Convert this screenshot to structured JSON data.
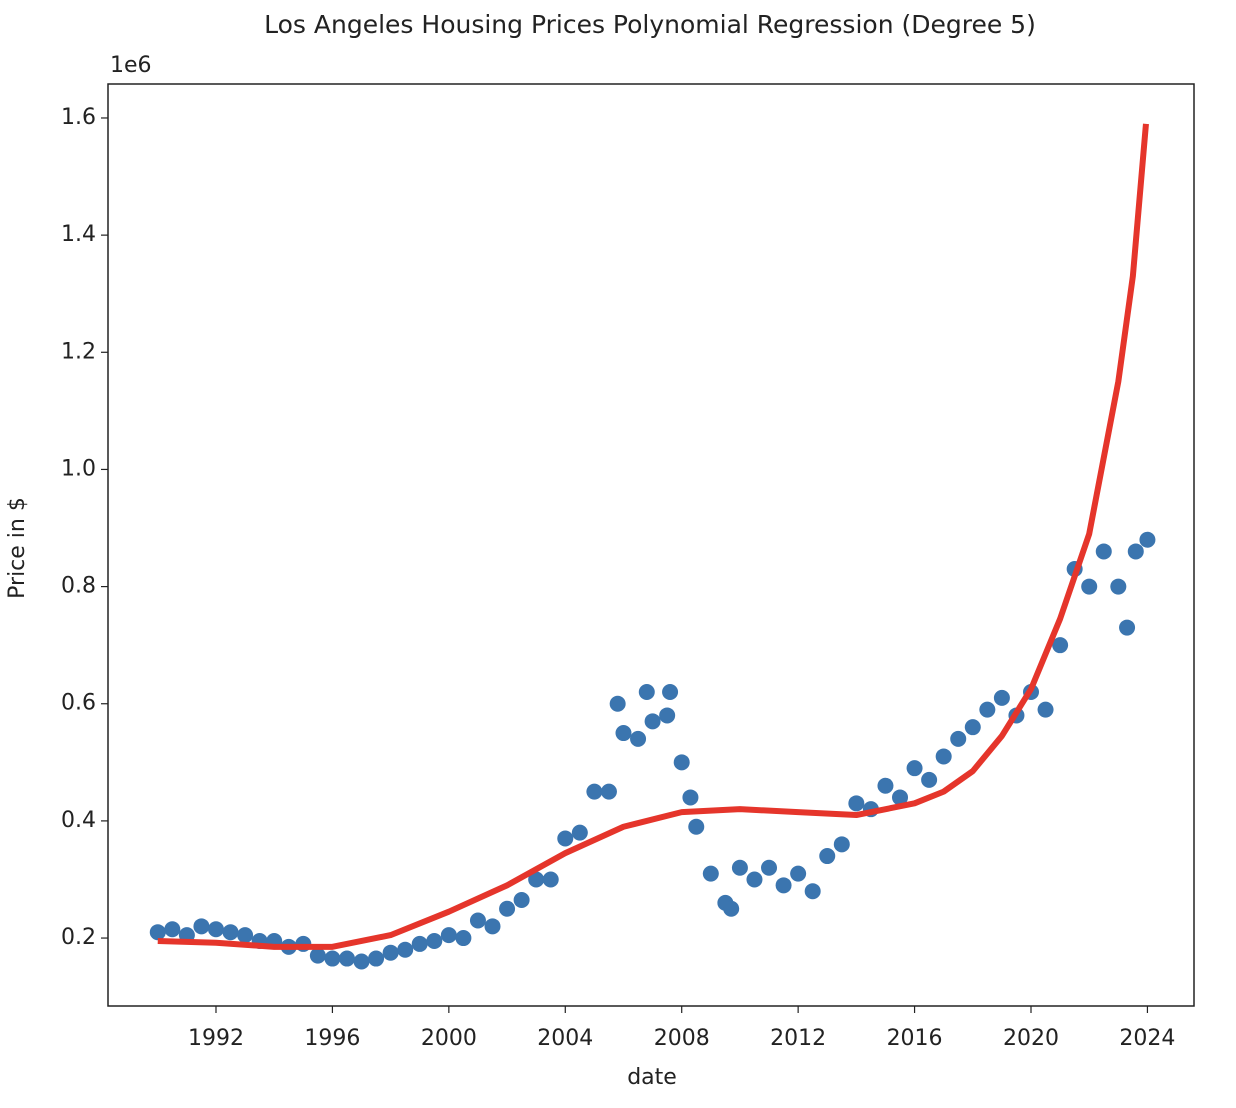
{
  "chart_data": {
    "type": "scatter",
    "title": "Los Angeles Housing Prices Polynomial Regression (Degree 5)",
    "x_label": "date",
    "y_label": "Price in $",
    "y_offset_label": "1e6",
    "xlim": [
      1988.29,
      2025.6
    ],
    "xticks": [
      1992,
      1996,
      2000,
      2004,
      2008,
      2012,
      2016,
      2020,
      2024
    ],
    "ylim": [
      84000,
      1658000
    ],
    "yticks": [
      {
        "value": 200000,
        "label": "0.2"
      },
      {
        "value": 400000,
        "label": "0.4"
      },
      {
        "value": 600000,
        "label": "0.6"
      },
      {
        "value": 800000,
        "label": "0.8"
      },
      {
        "value": 1000000,
        "label": "1.0"
      },
      {
        "value": 1200000,
        "label": "1.2"
      },
      {
        "value": 1400000,
        "label": "1.4"
      },
      {
        "value": 1600000,
        "label": "1.6"
      }
    ],
    "grid": false,
    "series": [
      {
        "type": "scatter",
        "color": "#3b75af",
        "x": [
          1990.0,
          1990.5,
          1991.0,
          1991.5,
          1992.0,
          1992.5,
          1993.0,
          1993.5,
          1994.0,
          1994.5,
          1995.0,
          1995.5,
          1996.0,
          1996.5,
          1997.0,
          1997.5,
          1998.0,
          1998.5,
          1999.0,
          1999.5,
          2000.0,
          2000.5,
          2001.0,
          2001.5,
          2002.0,
          2002.5,
          2003.0,
          2003.5,
          2004.0,
          2004.5,
          2005.0,
          2005.5,
          2005.8,
          2006.0,
          2006.5,
          2006.8,
          2007.0,
          2007.5,
          2007.6,
          2008.0,
          2008.3,
          2008.5,
          2009.0,
          2009.5,
          2009.7,
          2010.0,
          2010.5,
          2011.0,
          2011.5,
          2012.0,
          2012.5,
          2013.0,
          2013.5,
          2014.0,
          2014.5,
          2015.0,
          2015.5,
          2016.0,
          2016.5,
          2017.0,
          2017.5,
          2018.0,
          2018.5,
          2019.0,
          2019.5,
          2020.0,
          2020.5,
          2021.0,
          2021.5,
          2022.0,
          2022.5,
          2023.0,
          2023.3,
          2023.6,
          2024.0
        ],
        "values": [
          210000,
          215000,
          205000,
          220000,
          215000,
          210000,
          205000,
          195000,
          195000,
          185000,
          190000,
          170000,
          165000,
          165000,
          160000,
          165000,
          175000,
          180000,
          190000,
          195000,
          205000,
          200000,
          230000,
          220000,
          250000,
          265000,
          300000,
          300000,
          370000,
          380000,
          450000,
          450000,
          600000,
          550000,
          540000,
          620000,
          570000,
          580000,
          620000,
          500000,
          440000,
          390000,
          310000,
          260000,
          250000,
          320000,
          300000,
          320000,
          290000,
          310000,
          280000,
          340000,
          360000,
          430000,
          420000,
          460000,
          440000,
          490000,
          470000,
          510000,
          540000,
          560000,
          590000,
          610000,
          580000,
          620000,
          590000,
          700000,
          830000,
          800000,
          860000,
          800000,
          730000,
          860000,
          880000
        ]
      },
      {
        "type": "line",
        "color": "#e5352b",
        "x": [
          1990.0,
          1992.0,
          1994.0,
          1996.0,
          1998.0,
          2000.0,
          2002.0,
          2004.0,
          2006.0,
          2008.0,
          2010.0,
          2012.0,
          2014.0,
          2016.0,
          2017.0,
          2018.0,
          2019.0,
          2020.0,
          2021.0,
          2022.0,
          2023.0,
          2023.5,
          2023.95
        ],
        "values": [
          195000,
          192000,
          185000,
          185000,
          205000,
          245000,
          290000,
          345000,
          390000,
          415000,
          420000,
          415000,
          410000,
          430000,
          450000,
          485000,
          545000,
          625000,
          745000,
          890000,
          1150000,
          1330000,
          1590000
        ]
      }
    ]
  }
}
